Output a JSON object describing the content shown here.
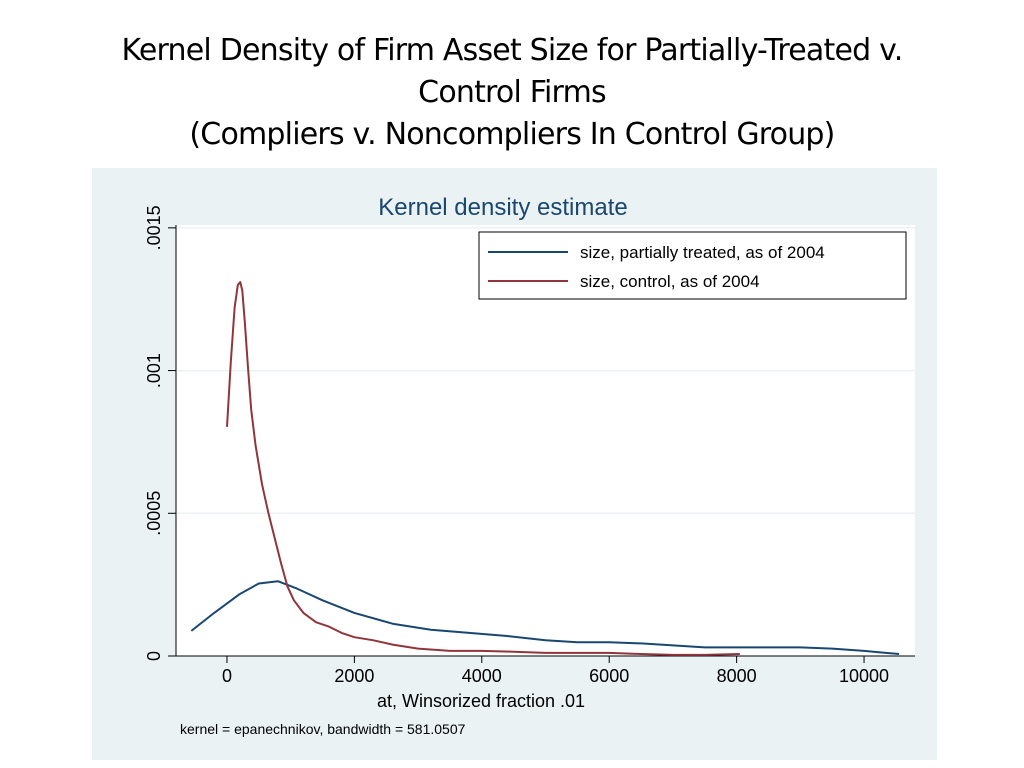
{
  "slide": {
    "title_lines": [
      "Kernel Density of Firm Asset Size for Partially-Treated v.",
      "Control Firms",
      "(Compliers v. Noncompliers In Control Group)"
    ]
  },
  "chart_data": {
    "type": "line",
    "title": "Kernel density estimate",
    "xlabel": "at, Winsorized fraction .01",
    "ylabel": "",
    "note": "kernel = epanechnikov, bandwidth = 581.0507",
    "xlim": [
      -800,
      10800
    ],
    "ylim": [
      0,
      0.00151
    ],
    "x_ticks": [
      0,
      2000,
      4000,
      6000,
      8000,
      10000
    ],
    "x_tick_labels": [
      "0",
      "2000",
      "4000",
      "6000",
      "8000",
      "10000"
    ],
    "y_ticks": [
      0,
      0.0005,
      0.001,
      0.0015
    ],
    "y_tick_labels": [
      "0",
      ".0005",
      ".001",
      ".0015"
    ],
    "grid": true,
    "legend_position": "top-right",
    "colors": {
      "partially_treated": "#1a476f",
      "control": "#90353b",
      "frame_bg": "#eaf2f3",
      "grid": "#eaf2f3"
    },
    "series": [
      {
        "name": "size, partially treated, as of 2004",
        "color": "#1a476f",
        "x": [
          -560,
          -200,
          200,
          500,
          800,
          1100,
          1500,
          2000,
          2600,
          3200,
          3800,
          4400,
          5000,
          5500,
          6000,
          6500,
          7000,
          7500,
          8000,
          8500,
          9000,
          9500,
          10000,
          10550
        ],
        "y": [
          8.8e-05,
          0.000151,
          0.000217,
          0.000254,
          0.000262,
          0.000236,
          0.000195,
          0.000151,
          0.000113,
          9.2e-05,
          8.1e-05,
          7e-05,
          5.5e-05,
          4.8e-05,
          4.8e-05,
          4.4e-05,
          3.7e-05,
          3e-05,
          3e-05,
          3e-05,
          3e-05,
          2.6e-05,
          1.8e-05,
          7e-06
        ]
      },
      {
        "name": "size, control, as of 2004",
        "color": "#90353b",
        "x": [
          0,
          60,
          120,
          170,
          210,
          240,
          280,
          330,
          380,
          450,
          550,
          650,
          750,
          850,
          950,
          1050,
          1200,
          1400,
          1600,
          1800,
          2000,
          2300,
          2600,
          3000,
          3500,
          4000,
          4500,
          5000,
          5500,
          6000,
          6500,
          7000,
          7500,
          8050
        ],
        "y": [
          0.000803,
          0.00103,
          0.00122,
          0.0013,
          0.00131,
          0.00128,
          0.00117,
          0.00101,
          0.000863,
          0.000737,
          0.000602,
          0.000501,
          0.000413,
          0.000324,
          0.000243,
          0.000195,
          0.000151,
          0.000118,
          0.000103,
          8.1e-05,
          6.6e-05,
          5.5e-05,
          4e-05,
          2.6e-05,
          1.8e-05,
          1.8e-05,
          1.5e-05,
          1.1e-05,
          1.1e-05,
          1.1e-05,
          7e-06,
          4e-06,
          4e-06,
          7e-06
        ]
      }
    ]
  }
}
